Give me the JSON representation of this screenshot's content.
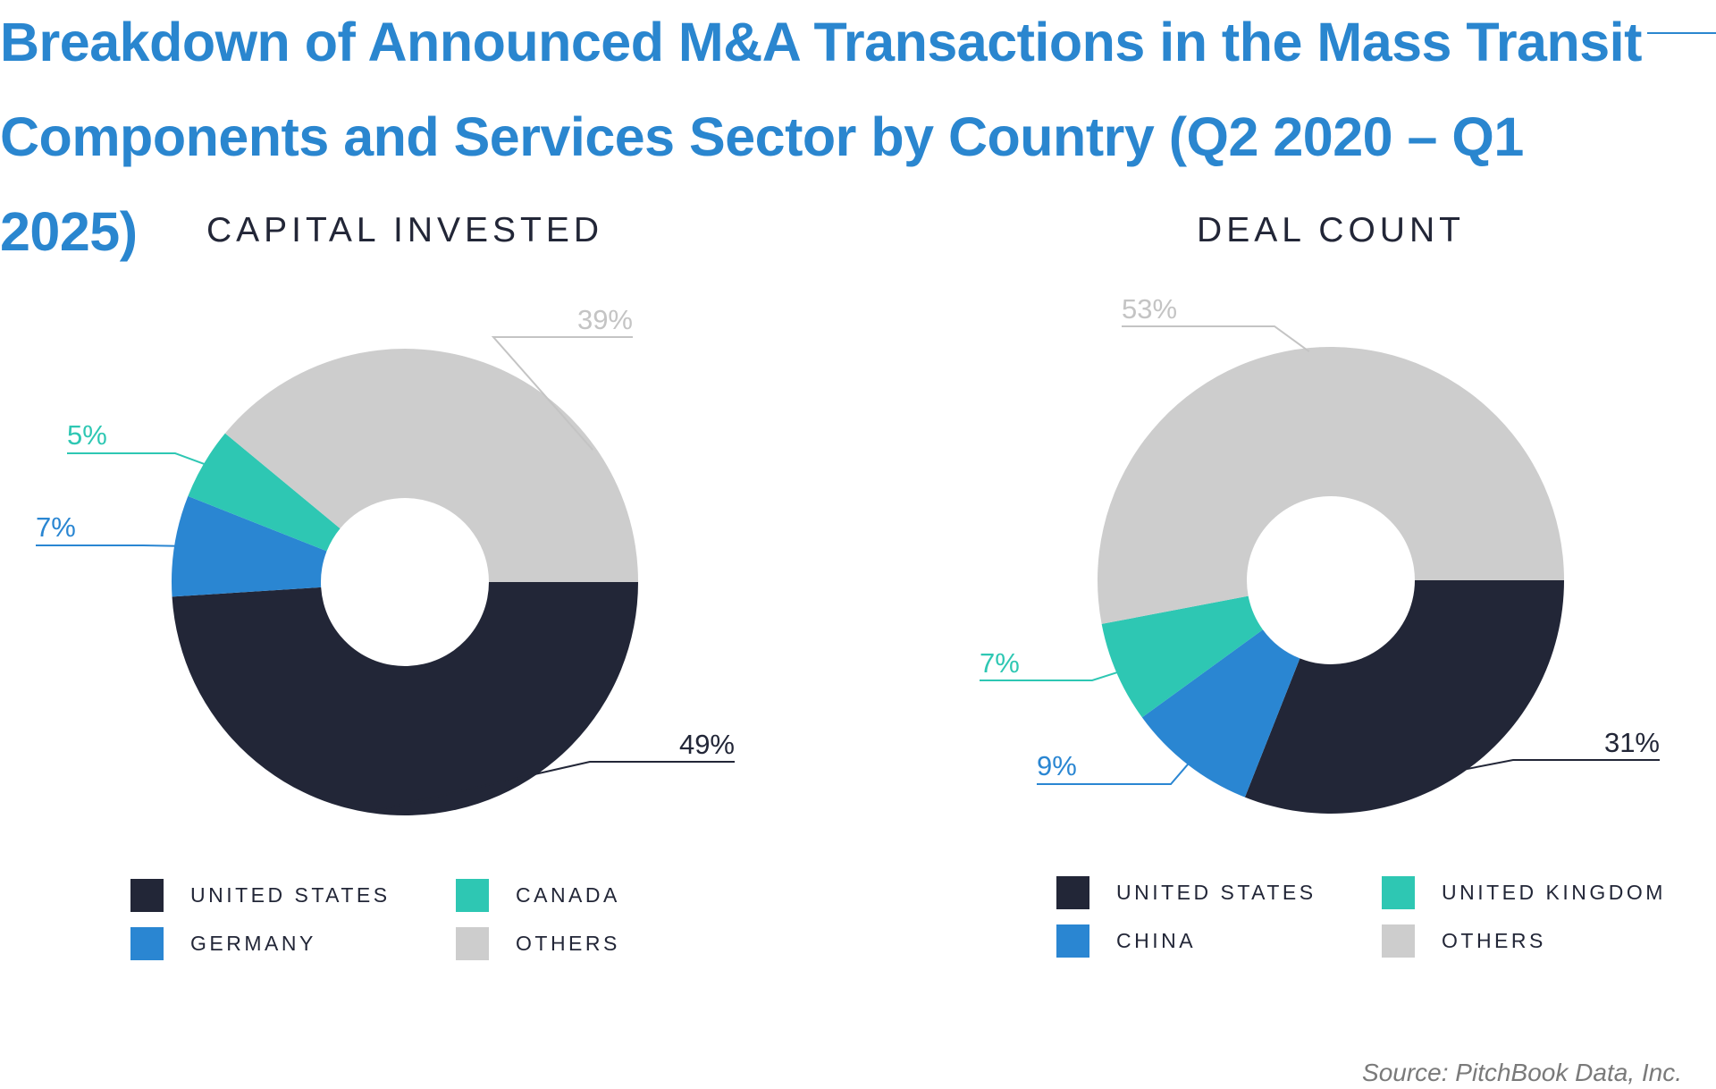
{
  "title": "Breakdown of Announced M&A Transactions in the Mass Transit Components and Services Sector by Country (Q2 2020 – Q1 2025)",
  "source": "Source: PitchBook Data, Inc.",
  "colors": {
    "title": "#2a86cf",
    "united_states": "#222637",
    "germany": "#2a86d2",
    "china": "#2a86d2",
    "canada": "#2ec7b3",
    "united_kingdom": "#2ec7b3",
    "others": "#cdcdcd"
  },
  "chart_data": [
    {
      "type": "pie",
      "donut": true,
      "title": "CAPITAL INVESTED",
      "series": [
        {
          "name": "UNITED STATES",
          "value": 49,
          "label": "49%",
          "color": "#222637"
        },
        {
          "name": "GERMANY",
          "value": 7,
          "label": "7%",
          "color": "#2a86d2"
        },
        {
          "name": "CANADA",
          "value": 5,
          "label": "5%",
          "color": "#2ec7b3"
        },
        {
          "name": "OTHERS",
          "value": 39,
          "label": "39%",
          "color": "#cdcdcd"
        }
      ],
      "legend": [
        "UNITED STATES",
        "CANADA",
        "GERMANY",
        "OTHERS"
      ],
      "legend_placement": "bottom"
    },
    {
      "type": "pie",
      "donut": true,
      "title": "DEAL COUNT",
      "series": [
        {
          "name": "UNITED STATES",
          "value": 31,
          "label": "31%",
          "color": "#222637"
        },
        {
          "name": "CHINA",
          "value": 9,
          "label": "9%",
          "color": "#2a86d2"
        },
        {
          "name": "UNITED KINGDOM",
          "value": 7,
          "label": "7%",
          "color": "#2ec7b3"
        },
        {
          "name": "OTHERS",
          "value": 53,
          "label": "53%",
          "color": "#cdcdcd"
        }
      ],
      "legend": [
        "UNITED STATES",
        "UNITED KINGDOM",
        "CHINA",
        "OTHERS"
      ],
      "legend_placement": "bottom"
    }
  ]
}
